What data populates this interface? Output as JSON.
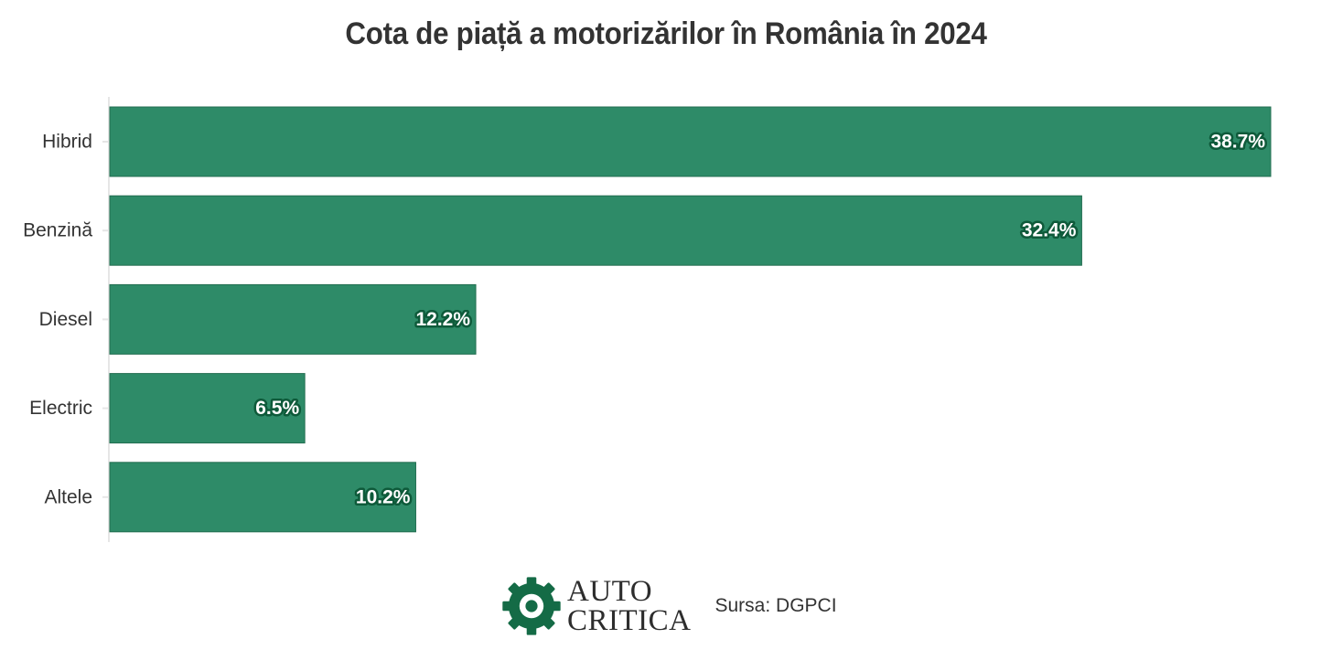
{
  "chart_data": {
    "type": "bar",
    "orientation": "horizontal",
    "title": "Cota de piață a motorizărilor în România în 2024",
    "categories": [
      "Hibrid",
      "Benzină",
      "Diesel",
      "Electric",
      "Altele"
    ],
    "values": [
      38.7,
      32.4,
      12.2,
      6.5,
      10.2
    ],
    "value_labels": [
      "38.7%",
      "32.4%",
      "12.2%",
      "6.5%",
      "10.2%"
    ],
    "xlim": [
      0,
      38.7
    ],
    "grid": false,
    "bar_color": "#2e8b68",
    "label_outline_color": "#0e5a3a"
  },
  "footer": {
    "logo_line1": "AUTO",
    "logo_line2": "CRITICA",
    "logo_icon": "gear-chat-icon",
    "logo_color": "#146b46",
    "source": "Sursa: DGPCI"
  }
}
